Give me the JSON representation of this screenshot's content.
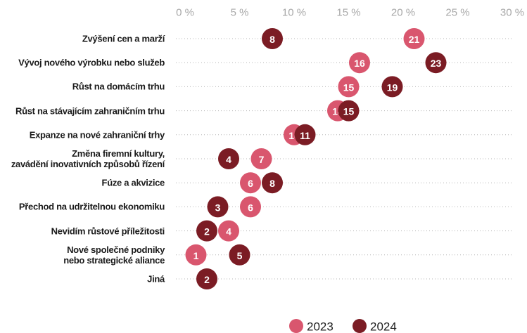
{
  "chart_data": {
    "type": "dot",
    "categories": [
      "Zvýšení cen a marží",
      "Vývoj nového výrobku nebo služeb",
      "Růst na domácím trhu",
      "Růst na stávajícím zahraničním trhu",
      "Expanze na nové zahraniční trhy",
      "Změna firemní kultury,\nzavádění inovativních způsobů řízení",
      "Fúze a akvizice",
      "Přechod na udržitelnou ekonomiku",
      "Nevidím růstové příležitosti",
      "Nové společné podniky\nnebo strategické aliance",
      "Jiná"
    ],
    "series": [
      {
        "name": "2023",
        "color": "#d9566e",
        "values": [
          21,
          16,
          15,
          14,
          10,
          7,
          6,
          6,
          4,
          1,
          null
        ]
      },
      {
        "name": "2024",
        "color": "#7b1c24",
        "values": [
          8,
          23,
          19,
          15,
          11,
          4,
          8,
          3,
          2,
          5,
          2
        ]
      }
    ],
    "xlim": [
      0,
      30
    ],
    "xticks": [
      {
        "value": 0,
        "label": "0 %"
      },
      {
        "value": 5,
        "label": "5 %"
      },
      {
        "value": 10,
        "label": "10 %"
      },
      {
        "value": 15,
        "label": "15 %"
      },
      {
        "value": 20,
        "label": "20 %"
      },
      {
        "value": 25,
        "label": "25 %"
      },
      {
        "value": 30,
        "label": "30 %"
      }
    ],
    "legend": "bottom"
  }
}
